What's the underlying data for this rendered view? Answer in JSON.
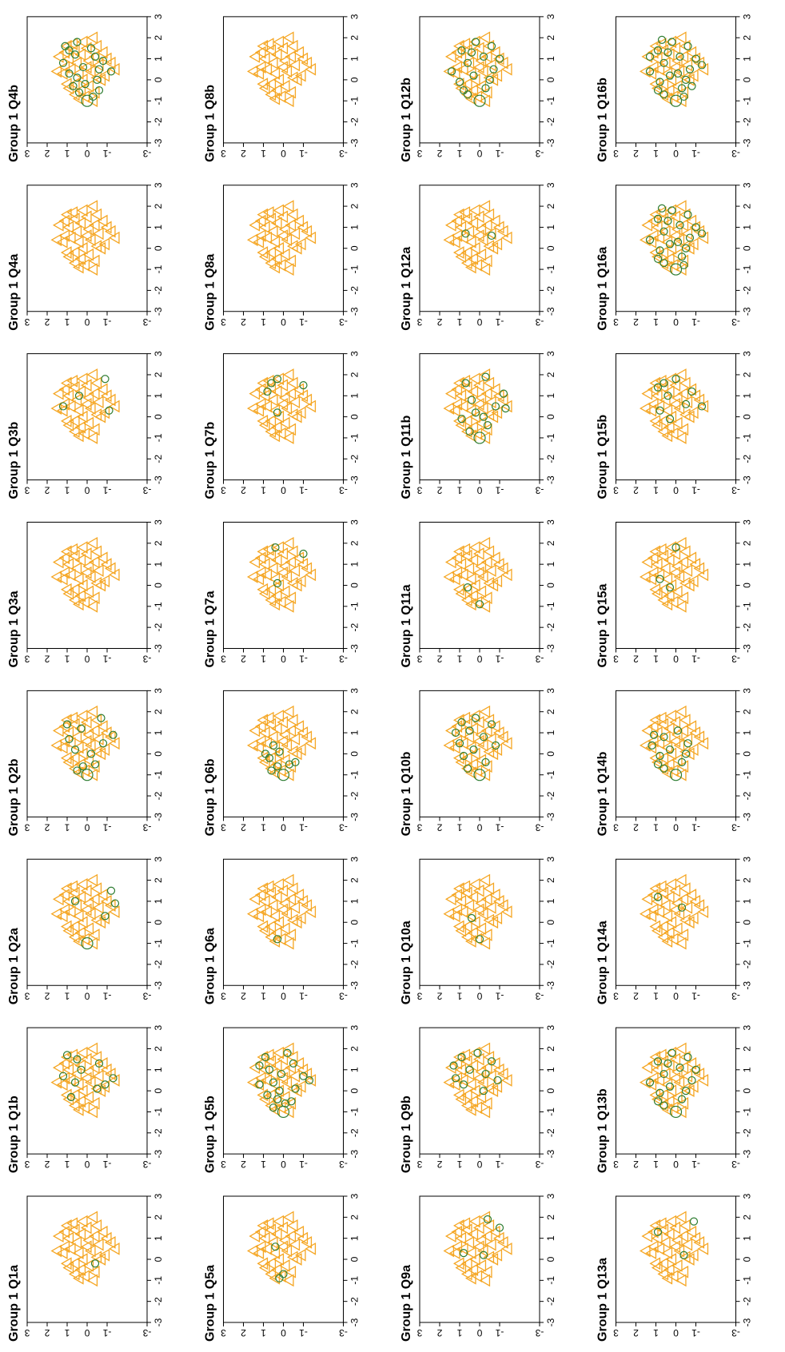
{
  "orientation": "page rotated 90 degrees counter-clockwise (panel text reads bottom-to-top)",
  "colors": {
    "group_triangles": "#F5A623",
    "question_circles": "#2E7D32",
    "frame": "#000000"
  },
  "panel_titles": [
    "Group 1 Q1a",
    "Group 1 Q1b",
    "Group 1 Q2a",
    "Group 1 Q2b",
    "Group 1 Q3a",
    "Group 1 Q3b",
    "Group 1 Q4a",
    "Group 1 Q4b",
    "Group 1 Q5a",
    "Group 1 Q5b",
    "Group 1 Q6a",
    "Group 1 Q6b",
    "Group 1 Q7a",
    "Group 1 Q7b",
    "Group 1 Q8a",
    "Group 1 Q8b",
    "Group 1 Q9a",
    "Group 1 Q9b",
    "Group 1 Q10a",
    "Group 1 Q10b",
    "Group 1 Q11a",
    "Group 1 Q11b",
    "Group 1 Q12a",
    "Group 1 Q12b",
    "Group 1 Q13a",
    "Group 1 Q13b",
    "Group 1 Q14a",
    "Group 1 Q14b",
    "Group 1 Q15a",
    "Group 1 Q15b",
    "Group 1 Q16a",
    "Group 1 Q16b"
  ],
  "chart_data": {
    "type": "scatter",
    "panel_count": 32,
    "layout": "8 panels per row (Q_a, Q_b pairs), 4 rows",
    "xlim": [
      -3,
      3
    ],
    "ylim": [
      -3,
      3
    ],
    "x_ticks": [
      "-3",
      "-2",
      "-1",
      "0",
      "1",
      "2",
      "3"
    ],
    "y_ticks": [
      "-3",
      "-1",
      "0",
      "1",
      "2",
      "3"
    ],
    "grid": false,
    "triangles_group": [
      [
        -1.0,
        -0.3
      ],
      [
        -0.8,
        0.1
      ],
      [
        -0.6,
        -0.4
      ],
      [
        -0.5,
        0.3
      ],
      [
        -0.3,
        -0.1
      ],
      [
        -0.2,
        0.6
      ],
      [
        0.0,
        0.2
      ],
      [
        0.1,
        -0.5
      ],
      [
        0.3,
        0.4
      ],
      [
        0.4,
        -0.2
      ],
      [
        0.5,
        0.8
      ],
      [
        0.6,
        0.0
      ],
      [
        0.7,
        -0.6
      ],
      [
        0.8,
        0.5
      ],
      [
        0.9,
        -0.1
      ],
      [
        1.0,
        0.9
      ],
      [
        1.1,
        -0.4
      ],
      [
        1.2,
        0.3
      ],
      [
        1.3,
        -0.8
      ],
      [
        1.4,
        0.6
      ],
      [
        1.5,
        0.0
      ],
      [
        1.6,
        -0.5
      ],
      [
        1.7,
        0.7
      ],
      [
        1.8,
        0.2
      ],
      [
        2.0,
        -0.3
      ],
      [
        0.2,
        -0.9
      ],
      [
        -0.4,
        0.9
      ],
      [
        0.6,
        1.1
      ],
      [
        -0.7,
        0.6
      ],
      [
        1.0,
        -1.0
      ],
      [
        0.3,
        1.2
      ],
      [
        -0.9,
        0.4
      ],
      [
        1.3,
        1.1
      ],
      [
        0.0,
        -0.7
      ],
      [
        0.8,
        -1.2
      ],
      [
        -0.2,
        1.0
      ],
      [
        1.6,
        1.0
      ],
      [
        0.4,
        1.5
      ],
      [
        0.5,
        -1.4
      ],
      [
        1.1,
        1.4
      ]
    ],
    "question_circles": {
      "Q1a": [
        [
          -0.2,
          -0.4
        ]
      ],
      "Q1b": [
        [
          -0.3,
          0.8
        ],
        [
          0.1,
          -0.5
        ],
        [
          0.4,
          0.6
        ],
        [
          0.7,
          1.2
        ],
        [
          1.0,
          0.3
        ],
        [
          1.3,
          -0.6
        ],
        [
          1.5,
          0.5
        ],
        [
          1.7,
          1.0
        ],
        [
          0.6,
          -1.3
        ],
        [
          0.3,
          -0.9
        ]
      ],
      "Q2a": [
        [
          -1.0,
          0.0
        ],
        [
          0.3,
          -0.9
        ],
        [
          1.0,
          0.6
        ],
        [
          1.5,
          -1.2
        ],
        [
          0.9,
          -1.4
        ]
      ],
      "Q2b": [
        [
          -1.0,
          0.0
        ],
        [
          -0.8,
          0.5
        ],
        [
          -0.5,
          -0.4
        ],
        [
          0.2,
          0.6
        ],
        [
          0.5,
          -0.8
        ],
        [
          0.9,
          -1.3
        ],
        [
          1.2,
          0.3
        ],
        [
          1.4,
          1.0
        ],
        [
          1.7,
          -0.7
        ],
        [
          0.0,
          -0.2
        ],
        [
          -0.6,
          0.2
        ],
        [
          0.7,
          0.9
        ]
      ],
      "Q3a": [],
      "Q3b": [
        [
          1.0,
          0.4
        ],
        [
          1.8,
          -0.9
        ],
        [
          0.5,
          1.2
        ],
        [
          0.3,
          -1.1
        ]
      ],
      "Q4a": [],
      "Q4b": [
        [
          -1.0,
          0.0
        ],
        [
          -0.8,
          -0.3
        ],
        [
          -0.6,
          0.4
        ],
        [
          -0.3,
          0.7
        ],
        [
          0.0,
          -0.5
        ],
        [
          0.3,
          0.9
        ],
        [
          0.6,
          0.2
        ],
        [
          0.9,
          -0.8
        ],
        [
          1.2,
          0.6
        ],
        [
          1.5,
          -0.2
        ],
        [
          1.8,
          0.5
        ],
        [
          0.4,
          -1.2
        ],
        [
          0.8,
          1.2
        ],
        [
          1.4,
          0.9
        ],
        [
          -0.2,
          0.1
        ],
        [
          0.1,
          0.5
        ],
        [
          1.1,
          -0.4
        ],
        [
          1.6,
          1.1
        ],
        [
          0.5,
          -0.6
        ],
        [
          -0.5,
          -0.6
        ]
      ],
      "Q5a": [
        [
          -0.9,
          0.2
        ],
        [
          -0.7,
          0.0
        ],
        [
          0.6,
          0.4
        ]
      ],
      "Q5b": [
        [
          -1.0,
          0.0
        ],
        [
          -0.8,
          0.5
        ],
        [
          -0.5,
          -0.4
        ],
        [
          -0.2,
          0.8
        ],
        [
          0.1,
          -0.6
        ],
        [
          0.4,
          0.5
        ],
        [
          0.7,
          -1.0
        ],
        [
          1.0,
          0.7
        ],
        [
          1.3,
          -0.5
        ],
        [
          1.6,
          0.9
        ],
        [
          1.8,
          -0.2
        ],
        [
          0.3,
          1.2
        ],
        [
          -0.4,
          0.3
        ],
        [
          0.8,
          0.1
        ],
        [
          1.2,
          1.2
        ],
        [
          0.5,
          -1.3
        ],
        [
          0.0,
          0.2
        ],
        [
          -0.6,
          -0.1
        ]
      ],
      "Q6a": [
        [
          -0.8,
          0.3
        ]
      ],
      "Q6b": [
        [
          -1.0,
          0.0
        ],
        [
          -0.8,
          0.6
        ],
        [
          -0.5,
          -0.3
        ],
        [
          -0.2,
          0.7
        ],
        [
          0.1,
          0.2
        ],
        [
          0.4,
          0.5
        ],
        [
          -0.4,
          -0.6
        ],
        [
          0.0,
          0.9
        ],
        [
          -0.6,
          0.3
        ]
      ],
      "Q7a": [
        [
          0.1,
          0.3
        ],
        [
          1.5,
          -1.0
        ],
        [
          1.8,
          0.4
        ]
      ],
      "Q7b": [
        [
          0.2,
          0.3
        ],
        [
          1.2,
          0.8
        ],
        [
          1.5,
          -1.0
        ],
        [
          1.8,
          0.3
        ],
        [
          1.6,
          0.6
        ]
      ],
      "Q8a": [],
      "Q8b": [],
      "Q9a": [
        [
          0.3,
          0.8
        ],
        [
          0.2,
          -0.2
        ],
        [
          1.5,
          -1.0
        ],
        [
          1.9,
          -0.4
        ]
      ],
      "Q9b": [
        [
          0.3,
          0.8
        ],
        [
          0.0,
          -0.2
        ],
        [
          0.6,
          1.2
        ],
        [
          1.0,
          0.5
        ],
        [
          1.4,
          -0.6
        ],
        [
          1.8,
          0.1
        ],
        [
          1.6,
          0.9
        ],
        [
          0.5,
          -0.9
        ],
        [
          1.2,
          1.3
        ],
        [
          0.8,
          -0.3
        ]
      ],
      "Q10a": [
        [
          -0.8,
          0.0
        ],
        [
          0.2,
          0.4
        ]
      ],
      "Q10b": [
        [
          -1.0,
          0.0
        ],
        [
          -0.7,
          0.6
        ],
        [
          -0.4,
          -0.3
        ],
        [
          -0.1,
          0.8
        ],
        [
          0.2,
          0.3
        ],
        [
          0.5,
          1.0
        ],
        [
          0.8,
          -0.2
        ],
        [
          1.1,
          0.5
        ],
        [
          1.4,
          -0.6
        ],
        [
          1.7,
          0.2
        ],
        [
          0.4,
          -0.8
        ],
        [
          1.0,
          1.2
        ],
        [
          1.5,
          0.9
        ]
      ],
      "Q11a": [
        [
          -0.9,
          0.0
        ],
        [
          -0.1,
          0.6
        ]
      ],
      "Q11b": [
        [
          -1.0,
          0.0
        ],
        [
          -0.7,
          0.5
        ],
        [
          -0.4,
          -0.4
        ],
        [
          -0.1,
          0.9
        ],
        [
          0.2,
          0.2
        ],
        [
          0.5,
          -0.8
        ],
        [
          0.8,
          0.4
        ],
        [
          1.1,
          -1.2
        ],
        [
          0.4,
          -1.3
        ],
        [
          1.6,
          0.7
        ],
        [
          1.9,
          -0.3
        ],
        [
          0.0,
          -0.2
        ]
      ],
      "Q12a": [
        [
          0.7,
          0.7
        ],
        [
          0.6,
          -0.6
        ]
      ],
      "Q12b": [
        [
          -1.0,
          0.0
        ],
        [
          -0.7,
          0.6
        ],
        [
          -0.4,
          -0.3
        ],
        [
          -0.1,
          1.0
        ],
        [
          0.2,
          0.3
        ],
        [
          0.5,
          -0.7
        ],
        [
          0.8,
          0.6
        ],
        [
          1.1,
          -0.2
        ],
        [
          1.4,
          0.9
        ],
        [
          1.8,
          0.2
        ],
        [
          0.4,
          1.4
        ],
        [
          1.0,
          -1.0
        ],
        [
          1.6,
          -0.6
        ],
        [
          0.0,
          -0.5
        ],
        [
          -0.5,
          0.8
        ],
        [
          1.3,
          0.4
        ]
      ],
      "Q13a": [
        [
          1.3,
          0.9
        ],
        [
          0.2,
          -0.4
        ],
        [
          1.8,
          -0.9
        ]
      ],
      "Q13b": [
        [
          -1.0,
          0.0
        ],
        [
          -0.7,
          0.6
        ],
        [
          -0.4,
          -0.3
        ],
        [
          -0.1,
          0.8
        ],
        [
          0.2,
          0.3
        ],
        [
          0.5,
          -0.8
        ],
        [
          0.8,
          0.6
        ],
        [
          1.1,
          -0.2
        ],
        [
          1.4,
          0.9
        ],
        [
          1.8,
          0.2
        ],
        [
          0.4,
          1.3
        ],
        [
          1.0,
          -1.0
        ],
        [
          1.6,
          -0.6
        ],
        [
          0.0,
          -0.5
        ],
        [
          -0.5,
          0.9
        ],
        [
          1.3,
          0.4
        ]
      ],
      "Q14a": [
        [
          1.2,
          0.9
        ],
        [
          0.7,
          -0.3
        ]
      ],
      "Q14b": [
        [
          -1.0,
          0.0
        ],
        [
          -0.7,
          0.6
        ],
        [
          -0.4,
          -0.3
        ],
        [
          -0.1,
          0.8
        ],
        [
          0.2,
          0.3
        ],
        [
          0.5,
          -0.6
        ],
        [
          0.8,
          0.6
        ],
        [
          1.1,
          -0.1
        ],
        [
          0.4,
          1.2
        ],
        [
          0.0,
          -0.5
        ],
        [
          -0.5,
          0.9
        ],
        [
          0.9,
          1.1
        ]
      ],
      "Q15a": [
        [
          0.3,
          0.8
        ],
        [
          1.8,
          0.0
        ],
        [
          -0.1,
          0.3
        ]
      ],
      "Q15b": [
        [
          -0.1,
          0.3
        ],
        [
          0.3,
          0.8
        ],
        [
          0.6,
          -0.5
        ],
        [
          1.0,
          0.4
        ],
        [
          1.4,
          0.9
        ],
        [
          1.8,
          0.0
        ],
        [
          1.2,
          -0.8
        ],
        [
          0.5,
          -1.3
        ],
        [
          1.6,
          0.6
        ]
      ],
      "Q16a": [
        [
          -1.0,
          0.0
        ],
        [
          -0.7,
          0.6
        ],
        [
          -0.4,
          -0.3
        ],
        [
          -0.1,
          0.8
        ],
        [
          0.2,
          0.3
        ],
        [
          0.5,
          -0.7
        ],
        [
          0.8,
          0.6
        ],
        [
          1.1,
          -0.2
        ],
        [
          1.4,
          0.9
        ],
        [
          1.8,
          0.2
        ],
        [
          0.4,
          1.3
        ],
        [
          1.0,
          -1.0
        ],
        [
          1.6,
          -0.6
        ],
        [
          0.0,
          -0.5
        ],
        [
          -0.5,
          0.9
        ],
        [
          1.3,
          0.4
        ],
        [
          0.7,
          -1.3
        ],
        [
          1.9,
          0.7
        ],
        [
          -0.8,
          -0.4
        ],
        [
          0.3,
          -0.1
        ]
      ],
      "Q16b": [
        [
          -1.0,
          0.0
        ],
        [
          -0.7,
          0.6
        ],
        [
          -0.4,
          -0.3
        ],
        [
          -0.1,
          0.8
        ],
        [
          0.2,
          0.3
        ],
        [
          0.5,
          -0.7
        ],
        [
          0.8,
          0.6
        ],
        [
          1.1,
          -0.2
        ],
        [
          1.4,
          0.9
        ],
        [
          1.8,
          0.2
        ],
        [
          0.4,
          1.3
        ],
        [
          1.0,
          -1.0
        ],
        [
          1.6,
          -0.6
        ],
        [
          0.0,
          -0.5
        ],
        [
          -0.5,
          0.9
        ],
        [
          1.3,
          0.4
        ],
        [
          0.7,
          -1.3
        ],
        [
          1.9,
          0.7
        ],
        [
          -0.8,
          -0.4
        ],
        [
          0.3,
          -0.1
        ],
        [
          1.1,
          1.3
        ],
        [
          -0.3,
          -0.8
        ]
      ]
    }
  }
}
